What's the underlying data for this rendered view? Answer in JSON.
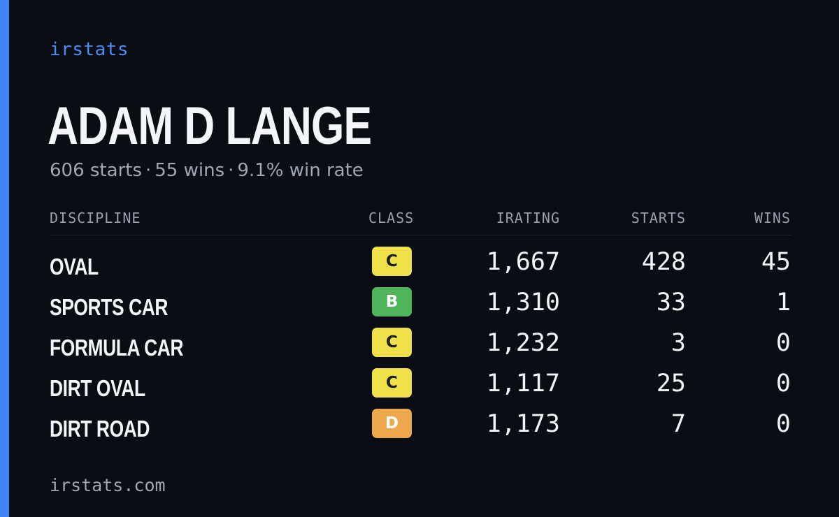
{
  "brand": "irstats",
  "driver_name": "ADAM D LANGE",
  "summary": {
    "starts": "606 starts",
    "wins": "55 wins",
    "win_rate": "9.1% win rate",
    "separator": "·"
  },
  "table": {
    "headers": {
      "discipline": "DISCIPLINE",
      "class": "CLASS",
      "irating": "IRATING",
      "starts": "STARTS",
      "wins": "WINS"
    },
    "rows": [
      {
        "discipline": "OVAL",
        "class": "C",
        "class_color": "#f0e04a",
        "irating": "1,667",
        "starts": "428",
        "wins": "45"
      },
      {
        "discipline": "SPORTS CAR",
        "class": "B",
        "class_color": "#4fb45a",
        "irating": "1,310",
        "starts": "33",
        "wins": "1"
      },
      {
        "discipline": "FORMULA CAR",
        "class": "C",
        "class_color": "#f0e04a",
        "irating": "1,232",
        "starts": "3",
        "wins": "0"
      },
      {
        "discipline": "DIRT OVAL",
        "class": "C",
        "class_color": "#f0e04a",
        "irating": "1,117",
        "starts": "25",
        "wins": "0"
      },
      {
        "discipline": "DIRT ROAD",
        "class": "D",
        "class_color": "#eca84a",
        "irating": "1,173",
        "starts": "7",
        "wins": "0"
      }
    ]
  },
  "footer": "irstats.com",
  "colors": {
    "background": "#0a0d14",
    "accent": "#3f84f2",
    "text_primary": "#f4f5f8",
    "text_muted": "#a0a7b4"
  }
}
